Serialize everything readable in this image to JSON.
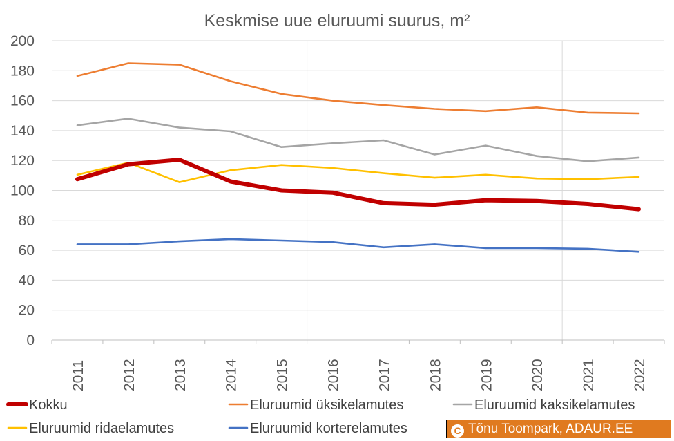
{
  "chart_data": {
    "type": "line",
    "title": "Keskmise uue eluruumi suurus, m²",
    "xlabel": "",
    "ylabel": "",
    "ylim": [
      0,
      200
    ],
    "yticks": [
      0,
      20,
      40,
      60,
      80,
      100,
      120,
      140,
      160,
      180,
      200
    ],
    "categories": [
      "2011",
      "2012",
      "2013",
      "2014",
      "2015",
      "2016",
      "2017",
      "2018",
      "2019",
      "2020",
      "2021",
      "2022"
    ],
    "grid": true,
    "legend_position": "bottom",
    "series": [
      {
        "name": "Kokku",
        "color": "#c00000",
        "width": "thick",
        "values": [
          107.5,
          117.5,
          120.5,
          106,
          100,
          98.5,
          91.5,
          90.5,
          93.5,
          93,
          91,
          87.5
        ]
      },
      {
        "name": "Eluruumid üksikelamutes",
        "color": "#ed7d31",
        "width": "thin",
        "values": [
          176.5,
          185,
          184,
          173,
          164.5,
          160,
          157,
          154.5,
          153,
          155.5,
          152,
          151.5
        ]
      },
      {
        "name": "Eluruumid kaksikelamutes",
        "color": "#a5a5a5",
        "width": "thin",
        "values": [
          143.5,
          148,
          142,
          139.5,
          129,
          131.5,
          133.5,
          124,
          130,
          123,
          119.5,
          122
        ]
      },
      {
        "name": "Eluruumid ridaelamutes",
        "color": "#ffc000",
        "width": "thin",
        "values": [
          110.5,
          118.5,
          105.5,
          113.5,
          117,
          115,
          111.5,
          108.5,
          110.5,
          108,
          107.5,
          109
        ]
      },
      {
        "name": "Eluruumid korterelamutes",
        "color": "#4472c4",
        "width": "thin",
        "values": [
          64,
          64,
          66,
          67.5,
          66.5,
          65.5,
          62,
          64,
          61.5,
          61.5,
          61,
          59
        ]
      }
    ]
  },
  "copyright": {
    "symbol": "C",
    "text": "Tõnu Toompark, ADAUR.EE"
  }
}
